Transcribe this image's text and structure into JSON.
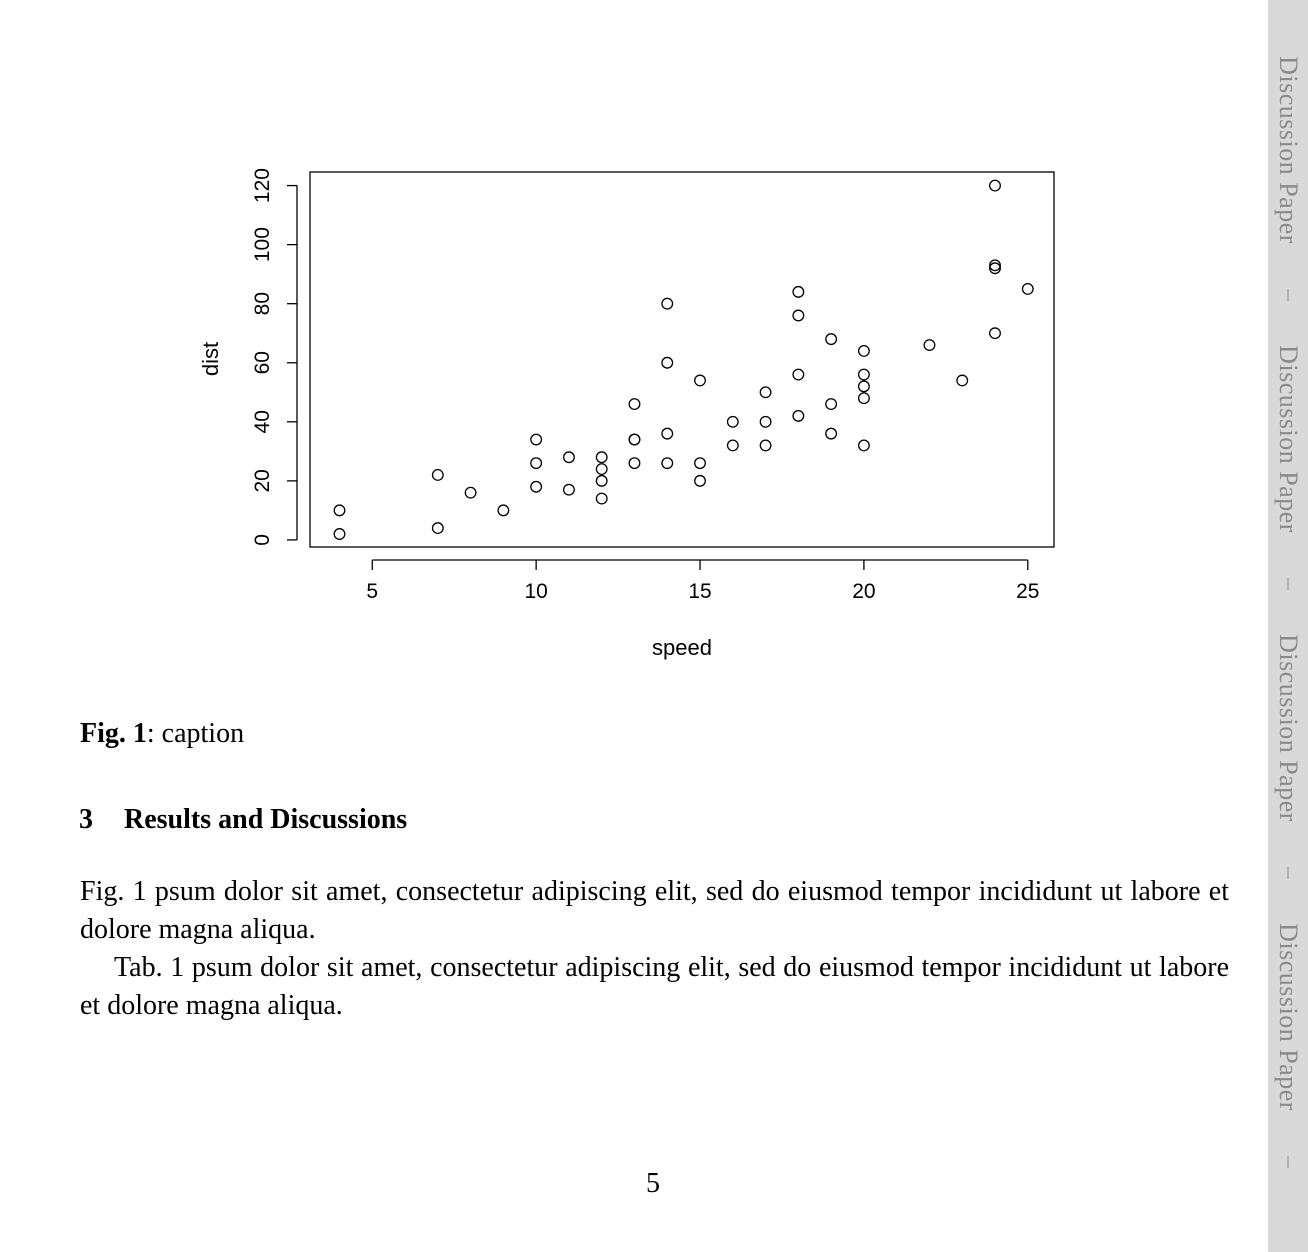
{
  "figure": {
    "label": "Fig. 1",
    "caption_text": ": caption"
  },
  "section": {
    "number": "3",
    "title": "Results and Discussions"
  },
  "paragraphs": [
    "Fig.  1 psum dolor sit amet, consectetur adipiscing elit, sed do eiusmod tempor incididunt ut labore et dolore magna aliqua.",
    "Tab. 1 psum dolor sit amet, consectetur adipiscing elit, sed do eiusmod tempor incididunt ut labore et dolore magna aliqua."
  ],
  "page_number": "5",
  "sidebar": {
    "label": "Discussion Paper",
    "separator": "|",
    "repeat": 4
  },
  "chart_data": {
    "type": "scatter",
    "title": "",
    "xlabel": "speed",
    "ylabel": "dist",
    "xlim": [
      3.1,
      25.8
    ],
    "ylim": [
      -2.4,
      124.6
    ],
    "xticks": [
      5,
      10,
      15,
      20,
      25
    ],
    "yticks": [
      0,
      20,
      40,
      60,
      80,
      100,
      120
    ],
    "grid": false,
    "marker": "open-circle",
    "points": [
      [
        4,
        2
      ],
      [
        4,
        10
      ],
      [
        7,
        4
      ],
      [
        7,
        22
      ],
      [
        8,
        16
      ],
      [
        9,
        10
      ],
      [
        10,
        18
      ],
      [
        10,
        26
      ],
      [
        10,
        34
      ],
      [
        11,
        17
      ],
      [
        11,
        28
      ],
      [
        12,
        14
      ],
      [
        12,
        20
      ],
      [
        12,
        24
      ],
      [
        12,
        28
      ],
      [
        13,
        26
      ],
      [
        13,
        34
      ],
      [
        13,
        34
      ],
      [
        13,
        46
      ],
      [
        14,
        26
      ],
      [
        14,
        36
      ],
      [
        14,
        60
      ],
      [
        14,
        80
      ],
      [
        15,
        20
      ],
      [
        15,
        26
      ],
      [
        15,
        54
      ],
      [
        16,
        32
      ],
      [
        16,
        40
      ],
      [
        17,
        32
      ],
      [
        17,
        40
      ],
      [
        17,
        50
      ],
      [
        18,
        42
      ],
      [
        18,
        56
      ],
      [
        18,
        76
      ],
      [
        18,
        84
      ],
      [
        19,
        36
      ],
      [
        19,
        46
      ],
      [
        19,
        68
      ],
      [
        20,
        32
      ],
      [
        20,
        48
      ],
      [
        20,
        52
      ],
      [
        20,
        56
      ],
      [
        20,
        64
      ],
      [
        22,
        66
      ],
      [
        23,
        54
      ],
      [
        24,
        70
      ],
      [
        24,
        92
      ],
      [
        24,
        93
      ],
      [
        24,
        120
      ],
      [
        25,
        85
      ]
    ]
  }
}
